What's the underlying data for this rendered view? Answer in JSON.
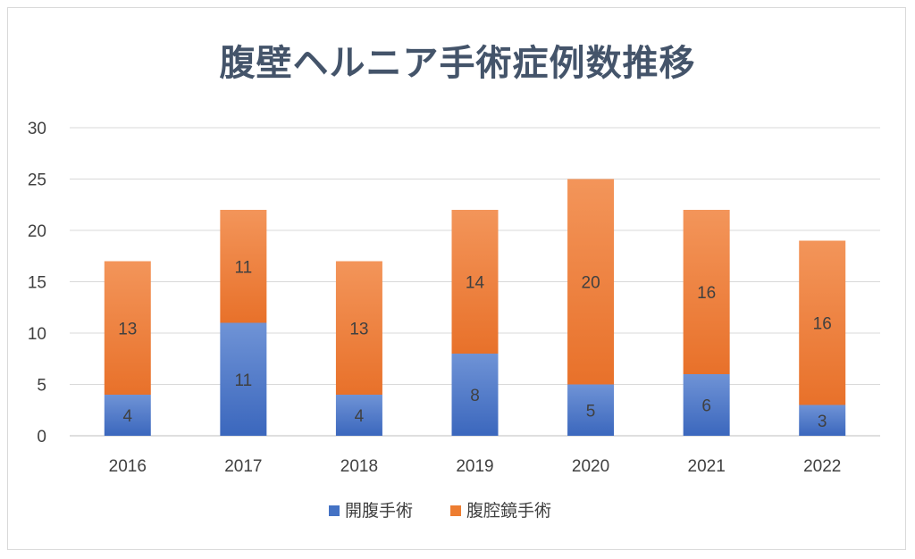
{
  "chart_data": {
    "type": "bar",
    "stacked": true,
    "title": "腹壁ヘルニア手術症例数推移",
    "categories": [
      "2016",
      "2017",
      "2018",
      "2019",
      "2020",
      "2021",
      "2022"
    ],
    "series": [
      {
        "name": "開腹手術",
        "values": [
          4,
          11,
          4,
          8,
          5,
          6,
          3
        ],
        "color": "#4472c4"
      },
      {
        "name": "腹腔鏡手術",
        "values": [
          13,
          11,
          13,
          14,
          20,
          16,
          16
        ],
        "color": "#ed7d31"
      }
    ],
    "ylim": [
      0,
      30
    ],
    "yticks": [
      0,
      5,
      10,
      15,
      20,
      25,
      30
    ],
    "grid": true,
    "legend": "bottom"
  }
}
